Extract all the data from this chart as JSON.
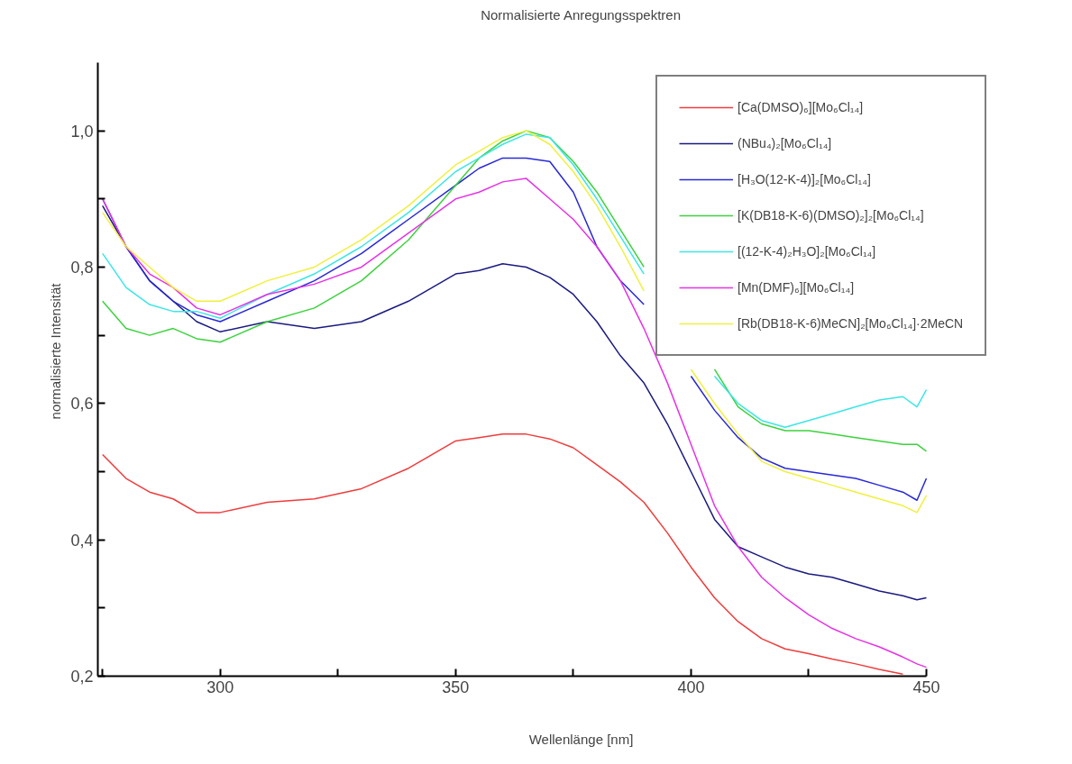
{
  "chart_data": {
    "type": "line",
    "title": "Normalisierte Anregungsspektren",
    "xlabel": "Wellenlänge [nm]",
    "ylabel": "normalisierte Intensität",
    "x": [
      275,
      280,
      285,
      290,
      295,
      300,
      310,
      320,
      330,
      340,
      350,
      355,
      360,
      365,
      370,
      375,
      380,
      385,
      390,
      395,
      400,
      405,
      410,
      415,
      420,
      425,
      430,
      435,
      440,
      445,
      448,
      450
    ],
    "xlim": [
      274,
      450
    ],
    "ylim": [
      0.2,
      1.1
    ],
    "xticks": [
      {
        "value": 275,
        "label": null
      },
      300,
      {
        "value": 325,
        "label": null
      },
      350,
      {
        "value": 375,
        "label": null
      },
      400,
      {
        "value": 425,
        "label": null
      },
      450
    ],
    "yticks": [
      {
        "value": 0.2,
        "label": "0,2"
      },
      {
        "value": 0.3,
        "label": null
      },
      {
        "value": 0.4,
        "label": "0,4"
      },
      {
        "value": 0.5,
        "label": null
      },
      {
        "value": 0.6,
        "label": "0,6"
      },
      {
        "value": 0.7,
        "label": null
      },
      {
        "value": 0.8,
        "label": "0,8"
      },
      {
        "value": 0.9,
        "label": null
      },
      {
        "value": 1.0,
        "label": "1,0"
      }
    ],
    "grid": false,
    "legend": "top right",
    "marker": "none",
    "line_style": "solid",
    "series": [
      {
        "name": "[Ca(DMSO)₆][Mo₆Cl₁₄]",
        "color": "#f03c3c",
        "values": [
          0.525,
          0.49,
          0.47,
          0.46,
          0.44,
          0.44,
          0.455,
          0.46,
          0.475,
          0.505,
          0.545,
          0.55,
          0.555,
          0.555,
          0.548,
          0.535,
          0.51,
          0.485,
          0.455,
          0.41,
          0.36,
          0.315,
          0.28,
          0.255,
          0.24,
          0.233,
          0.225,
          0.218,
          0.21,
          0.203,
          null,
          null
        ]
      },
      {
        "name": "(NBu₄)₂[Mo₆Cl₁₄]",
        "color": "#1a1a80",
        "values": [
          0.89,
          0.83,
          0.78,
          0.75,
          0.72,
          0.705,
          0.72,
          0.71,
          0.72,
          0.75,
          0.79,
          0.795,
          0.805,
          0.8,
          0.785,
          0.76,
          0.72,
          0.67,
          0.63,
          0.57,
          0.5,
          0.43,
          0.39,
          0.375,
          0.36,
          0.35,
          0.345,
          0.335,
          0.325,
          0.318,
          0.312,
          0.315
        ]
      },
      {
        "name": "[H₃O(12-K-4)]₂[Mo₆Cl₁₄]",
        "color": "#2828d8",
        "values": [
          0.9,
          0.83,
          0.78,
          0.75,
          0.73,
          0.72,
          0.75,
          0.78,
          0.82,
          0.87,
          0.92,
          0.945,
          0.96,
          0.96,
          0.955,
          0.91,
          0.83,
          0.78,
          0.745,
          null,
          0.64,
          0.59,
          0.55,
          0.52,
          0.505,
          0.5,
          0.495,
          0.49,
          0.48,
          0.47,
          0.458,
          0.49
        ]
      },
      {
        "name": "[K(DB18-K-6)(DMSO)₂]₂[Mo₆Cl₁₄]",
        "color": "#3cd23c",
        "values": [
          0.75,
          0.71,
          0.7,
          0.71,
          0.695,
          0.69,
          0.72,
          0.74,
          0.78,
          0.84,
          0.92,
          0.96,
          0.985,
          1.0,
          0.99,
          0.955,
          0.91,
          0.855,
          0.8,
          null,
          null,
          0.65,
          0.595,
          0.57,
          0.56,
          0.56,
          0.555,
          0.55,
          0.545,
          0.54,
          0.54,
          0.53
        ]
      },
      {
        "name": "[(12-K-4)₂H₃O]₂[Mo₆Cl₁₄]",
        "color": "#3ce6e6",
        "values": [
          0.82,
          0.77,
          0.745,
          0.735,
          0.735,
          0.725,
          0.76,
          0.79,
          0.83,
          0.88,
          0.94,
          0.96,
          0.98,
          0.995,
          0.99,
          0.95,
          0.9,
          0.845,
          0.79,
          null,
          null,
          0.64,
          0.6,
          0.575,
          0.565,
          0.575,
          0.585,
          0.595,
          0.605,
          0.61,
          0.595,
          0.62
        ]
      },
      {
        "name": "[Mn(DMF)₆][Mo₆Cl₁₄]",
        "color": "#e632e6",
        "values": [
          0.9,
          0.83,
          0.79,
          0.77,
          0.74,
          0.73,
          0.76,
          0.775,
          0.8,
          0.85,
          0.9,
          0.91,
          0.925,
          0.93,
          0.9,
          0.87,
          0.83,
          0.78,
          0.71,
          0.63,
          0.54,
          0.45,
          0.39,
          0.345,
          0.315,
          0.29,
          0.27,
          0.255,
          0.243,
          0.228,
          0.218,
          0.213
        ]
      },
      {
        "name": "[Rb(DB18-K-6)MeCN]₂[Mo₆Cl₁₄]·2MeCN",
        "color": "#f0f03c",
        "values": [
          0.88,
          0.83,
          0.8,
          0.77,
          0.75,
          0.75,
          0.78,
          0.8,
          0.84,
          0.89,
          0.95,
          0.97,
          0.99,
          1.0,
          0.98,
          0.94,
          0.89,
          0.83,
          0.765,
          null,
          0.65,
          0.6,
          0.555,
          0.515,
          0.5,
          0.49,
          0.48,
          0.47,
          0.46,
          0.45,
          0.44,
          0.465
        ]
      }
    ]
  }
}
